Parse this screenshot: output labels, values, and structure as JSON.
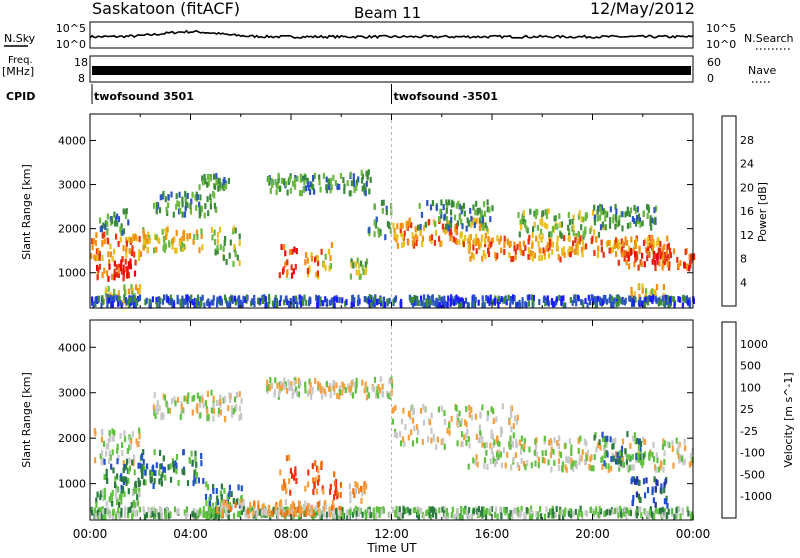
{
  "header": {
    "station": "Saskatoon (fitACF)",
    "beam": "Beam 11",
    "date": "12/May/2012"
  },
  "top_panels": {
    "nsky_label": "N.Sky",
    "nsky_ticks": [
      "10^5",
      "10^0"
    ],
    "nsearch_label": "N.Search",
    "nsearch_ticks": [
      "10^5",
      "10^0"
    ],
    "freq_label": "Freq.",
    "freq_unit": "[MHz]",
    "freq_ticks": [
      "18",
      "8"
    ],
    "nave_label": "Nave",
    "nave_ticks": [
      "60",
      "0"
    ],
    "cpid_label": "CPID",
    "cpid_entries": [
      {
        "label": "twofsound 3501",
        "start_hour": 0
      },
      {
        "label": "twofsound -3501",
        "start_hour": 12
      }
    ]
  },
  "chart_data": [
    {
      "type": "heatmap",
      "name": "power_panel",
      "xlabel": "Time UT",
      "ylabel": "Slant Range [km]",
      "x_range_hours": [
        0,
        24
      ],
      "xticks": [
        "00:00",
        "04:00",
        "08:00",
        "12:00",
        "16:00",
        "20:00",
        "00:00"
      ],
      "ylim": [
        200,
        4600
      ],
      "yticks": [
        1000,
        2000,
        3000,
        4000
      ],
      "colorbar_label": "Power [dB]",
      "colorbar_ticks": [
        "4",
        "8",
        "12",
        "16",
        "20",
        "24",
        "28"
      ],
      "colorbar_colors": [
        "#1a1aff",
        "#2a55c0",
        "#3a8a3a",
        "#6ab840",
        "#e8c020",
        "#f09010",
        "#e83010",
        "#ee0000"
      ],
      "bands": [
        {
          "t": [
            0.0,
            2.0
          ],
          "r": [
            1300,
            1900
          ],
          "level": 5
        },
        {
          "t": [
            0.2,
            1.8
          ],
          "r": [
            850,
            1300
          ],
          "level": 6
        },
        {
          "t": [
            0.3,
            1.5
          ],
          "r": [
            1900,
            2400
          ],
          "level": 2
        },
        {
          "t": [
            0.5,
            2.0
          ],
          "r": [
            300,
            700
          ],
          "level": 4
        },
        {
          "t": [
            2.0,
            4.5
          ],
          "r": [
            1500,
            2000
          ],
          "level": 4
        },
        {
          "t": [
            2.5,
            5.0
          ],
          "r": [
            2300,
            2800
          ],
          "level": 2
        },
        {
          "t": [
            4.3,
            5.5
          ],
          "r": [
            2900,
            3200
          ],
          "level": 2
        },
        {
          "t": [
            4.8,
            6.0
          ],
          "r": [
            1200,
            2000
          ],
          "level": 3
        },
        {
          "t": [
            7.5,
            8.2
          ],
          "r": [
            900,
            1600
          ],
          "level": 6
        },
        {
          "t": [
            8.5,
            9.2
          ],
          "r": [
            900,
            1500
          ],
          "level": 5
        },
        {
          "t": [
            9.2,
            9.6
          ],
          "r": [
            1000,
            1700
          ],
          "level": 4
        },
        {
          "t": [
            7.0,
            10.0
          ],
          "r": [
            2800,
            3200
          ],
          "level": 2
        },
        {
          "t": [
            10.0,
            11.2
          ],
          "r": [
            2800,
            3300
          ],
          "level": 2
        },
        {
          "t": [
            10.2,
            11.0
          ],
          "r": [
            900,
            1300
          ],
          "level": 3
        },
        {
          "t": [
            11.0,
            12.0
          ],
          "r": [
            1800,
            2600
          ],
          "level": 2
        },
        {
          "t": [
            12.0,
            16.0
          ],
          "r": [
            1600,
            2200
          ],
          "level": 5
        },
        {
          "t": [
            13.0,
            16.0
          ],
          "r": [
            2000,
            2600
          ],
          "level": 2
        },
        {
          "t": [
            15.0,
            19.0
          ],
          "r": [
            1300,
            1800
          ],
          "level": 5
        },
        {
          "t": [
            17.0,
            20.5
          ],
          "r": [
            1800,
            2400
          ],
          "level": 3
        },
        {
          "t": [
            19.0,
            23.0
          ],
          "r": [
            1400,
            1800
          ],
          "level": 5
        },
        {
          "t": [
            20.0,
            22.5
          ],
          "r": [
            2000,
            2500
          ],
          "level": 2
        },
        {
          "t": [
            21.0,
            24.0
          ],
          "r": [
            1100,
            1500
          ],
          "level": 6
        },
        {
          "t": [
            21.5,
            22.8
          ],
          "r": [
            300,
            700
          ],
          "level": 4
        },
        {
          "t": [
            0.0,
            24.0
          ],
          "r": [
            250,
            450
          ],
          "level": 1
        }
      ]
    },
    {
      "type": "heatmap",
      "name": "velocity_panel",
      "xlabel": "Time UT",
      "ylabel": "Slant Range [km]",
      "x_range_hours": [
        0,
        24
      ],
      "xticks": [
        "00:00",
        "04:00",
        "08:00",
        "12:00",
        "16:00",
        "20:00",
        "00:00"
      ],
      "ylim": [
        200,
        4600
      ],
      "yticks": [
        1000,
        2000,
        3000,
        4000
      ],
      "colorbar_label": "Velocity [m s^-1]",
      "colorbar_ticks": [
        "1000",
        "500",
        "100",
        "25",
        "-25",
        "-100",
        "-500",
        "-1000"
      ],
      "colorbar_colors": [
        "#2030a0",
        "#2050d0",
        "#2a7a40",
        "#60c040",
        "#c8c8c8",
        "#f4a040",
        "#f07010",
        "#f03010",
        "#e00000"
      ],
      "bands": [
        {
          "t": [
            0.0,
            2.0
          ],
          "r": [
            1400,
            2200
          ],
          "level": 4
        },
        {
          "t": [
            0.5,
            2.5
          ],
          "r": [
            900,
            1500
          ],
          "level": 2
        },
        {
          "t": [
            2.0,
            4.5
          ],
          "r": [
            1000,
            1700
          ],
          "level": 2
        },
        {
          "t": [
            0.2,
            2.0
          ],
          "r": [
            500,
            900
          ],
          "level": 3
        },
        {
          "t": [
            2.5,
            6.0
          ],
          "r": [
            2400,
            3000
          ],
          "level": 4
        },
        {
          "t": [
            4.5,
            6.0
          ],
          "r": [
            500,
            1000
          ],
          "level": 2
        },
        {
          "t": [
            7.5,
            8.2
          ],
          "r": [
            800,
            1600
          ],
          "level": 6
        },
        {
          "t": [
            8.5,
            9.3
          ],
          "r": [
            800,
            1500
          ],
          "level": 6
        },
        {
          "t": [
            9.5,
            10.0
          ],
          "r": [
            700,
            1300
          ],
          "level": 6
        },
        {
          "t": [
            10.3,
            11.0
          ],
          "r": [
            600,
            1000
          ],
          "level": 5
        },
        {
          "t": [
            7.0,
            12.0
          ],
          "r": [
            2900,
            3300
          ],
          "level": 4
        },
        {
          "t": [
            12.0,
            17.0
          ],
          "r": [
            1800,
            2700
          ],
          "level": 4
        },
        {
          "t": [
            15.0,
            24.0
          ],
          "r": [
            1300,
            2000
          ],
          "level": 4
        },
        {
          "t": [
            20.0,
            22.0
          ],
          "r": [
            1400,
            2100
          ],
          "level": 2
        },
        {
          "t": [
            21.5,
            23.0
          ],
          "r": [
            500,
            1100
          ],
          "level": 1
        },
        {
          "t": [
            0.0,
            24.0
          ],
          "r": [
            250,
            450
          ],
          "level": 3
        },
        {
          "t": [
            5.0,
            10.0
          ],
          "r": [
            300,
            600
          ],
          "level": 5
        }
      ]
    }
  ]
}
